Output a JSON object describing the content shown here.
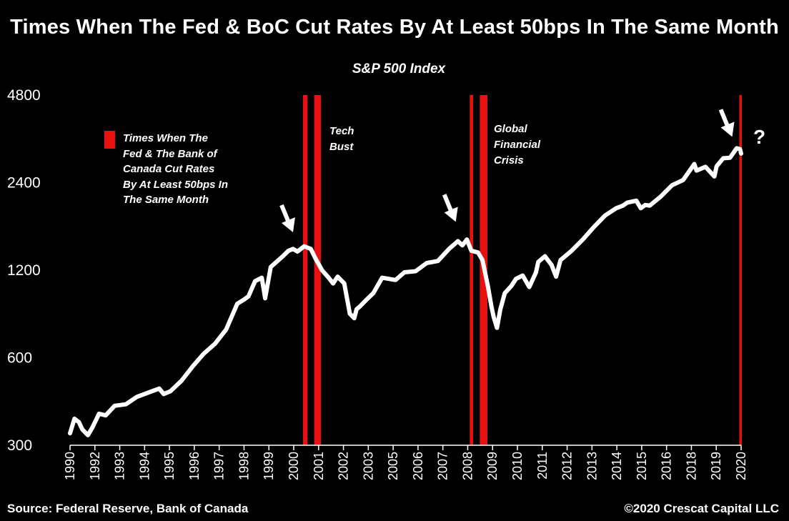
{
  "title": "Times When The Fed & BoC Cut Rates By At Least 50bps In The Same Month",
  "subtitle": "S&P 500 Index",
  "footer": {
    "source": "Source: Federal Reserve, Bank of Canada",
    "copyright": "©2020 Crescat Capital LLC"
  },
  "legend": {
    "text": "Times When The\nFed & The Bank of\nCanada Cut Rates\nBy At Least 50bps In\nThe Same Month",
    "color": "#e8110f"
  },
  "annotations": {
    "tech_bust": "Tech\nBust",
    "gfc": "Global\nFinancial\nCrisis",
    "question": "?"
  },
  "colors": {
    "background": "#000000",
    "line": "#ffffff",
    "band": "#e8110f",
    "text": "#ffffff"
  },
  "chart_data": {
    "type": "line",
    "y_scale": "log",
    "ylim": [
      300,
      4800
    ],
    "y_ticks": [
      300,
      600,
      1200,
      2400,
      4800
    ],
    "x_ticks": [
      "1990",
      "1992",
      "1993",
      "1994",
      "1995",
      "1996",
      "1997",
      "1998",
      "1999",
      "2000",
      "2001",
      "2002",
      "2003",
      "2005",
      "2006",
      "2007",
      "2008",
      "2009",
      "2010",
      "2011",
      "2012",
      "2013",
      "2014",
      "2015",
      "2016",
      "2018",
      "2019",
      "2020"
    ],
    "xlim": [
      1990.0,
      2020.1
    ],
    "series": [
      {
        "x": [
          1990.0,
          1990.2,
          1990.4,
          1990.55,
          1990.8,
          1991.0,
          1991.3,
          1991.6,
          1992.0,
          1992.5,
          1993.0,
          1993.5,
          1994.0,
          1994.2,
          1994.5,
          1995.0,
          1995.5,
          1996.0,
          1996.5,
          1997.0,
          1997.5,
          1997.8,
          1998.0,
          1998.3,
          1998.6,
          1998.75,
          1999.0,
          1999.5,
          1999.8,
          2000.0,
          2000.2,
          2000.5,
          2000.8,
          2001.0,
          2001.3,
          2001.6,
          2001.8,
          2002.0,
          2002.3,
          2002.55,
          2002.75,
          2002.85,
          2003.0,
          2003.3,
          2003.6,
          2004.0,
          2004.3,
          2004.6,
          2005.0,
          2005.5,
          2006.0,
          2006.5,
          2007.0,
          2007.4,
          2007.6,
          2007.8,
          2008.0,
          2008.3,
          2008.5,
          2008.75,
          2008.9,
          2009.0,
          2009.15,
          2009.3,
          2009.5,
          2009.8,
          2010.0,
          2010.3,
          2010.6,
          2010.9,
          2011.0,
          2011.3,
          2011.6,
          2011.8,
          2012.0,
          2012.5,
          2013.0,
          2013.5,
          2014.0,
          2014.5,
          2014.8,
          2015.0,
          2015.4,
          2015.6,
          2015.8,
          2016.0,
          2016.5,
          2017.0,
          2017.5,
          2018.0,
          2018.1,
          2018.5,
          2018.9,
          2019.0,
          2019.3,
          2019.6,
          2019.9,
          2020.05,
          2020.1
        ],
        "y": [
          330,
          370,
          360,
          340,
          325,
          345,
          385,
          380,
          410,
          415,
          440,
          455,
          470,
          450,
          460,
          500,
          560,
          620,
          670,
          750,
          920,
          950,
          975,
          1100,
          1130,
          960,
          1230,
          1330,
          1400,
          1420,
          1390,
          1450,
          1420,
          1320,
          1200,
          1130,
          1080,
          1140,
          1080,
          850,
          820,
          880,
          900,
          950,
          1000,
          1130,
          1120,
          1110,
          1180,
          1190,
          1270,
          1290,
          1420,
          1510,
          1460,
          1530,
          1400,
          1380,
          1300,
          1050,
          900,
          830,
          760,
          880,
          1000,
          1060,
          1120,
          1150,
          1050,
          1180,
          1280,
          1340,
          1250,
          1140,
          1300,
          1400,
          1530,
          1690,
          1850,
          1960,
          2000,
          2050,
          2080,
          1960,
          2010,
          2000,
          2150,
          2350,
          2450,
          2780,
          2640,
          2720,
          2520,
          2730,
          2910,
          2920,
          3150,
          3130,
          3020
        ]
      }
    ],
    "bands": [
      {
        "start": 2000.45,
        "end": 2000.65
      },
      {
        "start": 2000.95,
        "end": 2001.25
      },
      {
        "start": 2007.93,
        "end": 2008.08
      },
      {
        "start": 2008.38,
        "end": 2008.72
      },
      {
        "start": 2020.02,
        "end": 2020.13
      }
    ],
    "arrows": [
      {
        "x": 2000.0,
        "y": 1620
      },
      {
        "x": 2007.3,
        "y": 1760
      },
      {
        "x": 2019.7,
        "y": 3450
      }
    ]
  }
}
